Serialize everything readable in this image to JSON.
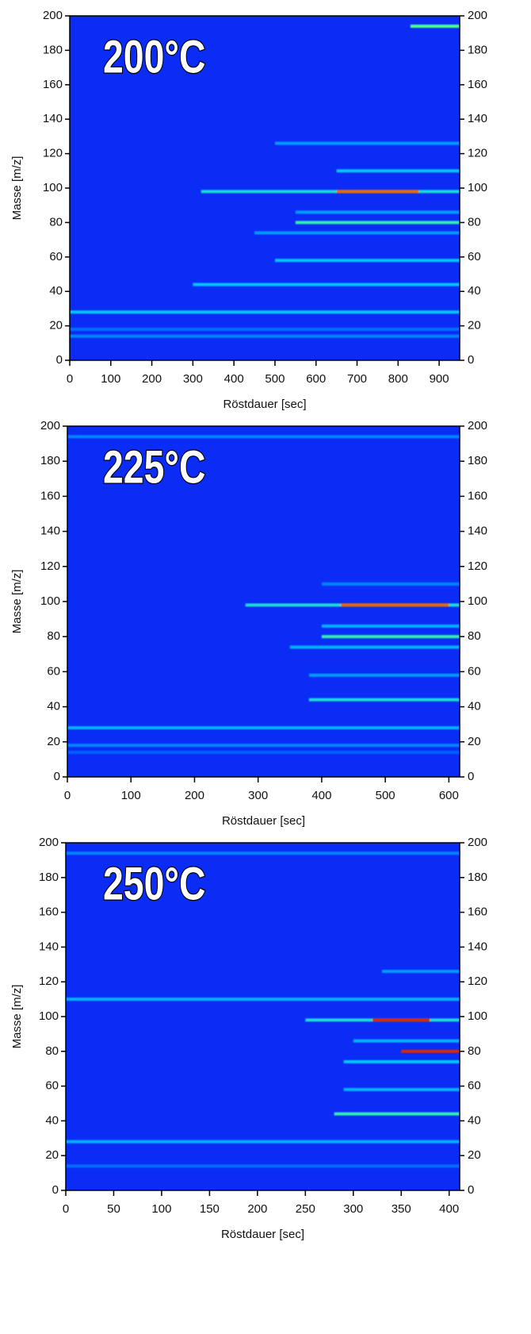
{
  "chart_data": [
    {
      "type": "heatmap",
      "title": "200°C",
      "xlabel": "Röstdauer [sec]",
      "ylabel": "Masse [m/z]",
      "xlim": [
        0,
        950
      ],
      "xticks": [
        0,
        100,
        200,
        300,
        400,
        500,
        600,
        700,
        800,
        900
      ],
      "ylim": [
        0,
        200
      ],
      "yticks": [
        0,
        20,
        40,
        60,
        80,
        100,
        120,
        140,
        160,
        180,
        200
      ],
      "bands": [
        {
          "mass": 14,
          "from": 0,
          "to": 950,
          "level": 0.3
        },
        {
          "mass": 18,
          "from": 0,
          "to": 950,
          "level": 0.25
        },
        {
          "mass": 28,
          "from": 0,
          "to": 950,
          "level": 0.45
        },
        {
          "mass": 44,
          "from": 300,
          "to": 950,
          "level": 0.45
        },
        {
          "mass": 58,
          "from": 500,
          "to": 950,
          "level": 0.45
        },
        {
          "mass": 74,
          "from": 450,
          "to": 950,
          "level": 0.35
        },
        {
          "mass": 80,
          "from": 550,
          "to": 950,
          "level": 0.55
        },
        {
          "mass": 86,
          "from": 550,
          "to": 950,
          "level": 0.35
        },
        {
          "mass": 98,
          "from": 320,
          "to": 950,
          "level": 0.5
        },
        {
          "mass": 98,
          "from": 650,
          "to": 850,
          "level": 0.85
        },
        {
          "mass": 110,
          "from": 650,
          "to": 950,
          "level": 0.45
        },
        {
          "mass": 126,
          "from": 500,
          "to": 950,
          "level": 0.35
        },
        {
          "mass": 194,
          "from": 830,
          "to": 950,
          "level": 0.6
        }
      ]
    },
    {
      "type": "heatmap",
      "title": "225°C",
      "xlabel": "Röstdauer [sec]",
      "ylabel": "Masse [m/z]",
      "xlim": [
        0,
        617
      ],
      "xticks": [
        0,
        100,
        200,
        300,
        400,
        500,
        600
      ],
      "ylim": [
        0,
        200
      ],
      "yticks": [
        0,
        20,
        40,
        60,
        80,
        100,
        120,
        140,
        160,
        180,
        200
      ],
      "bands": [
        {
          "mass": 14,
          "from": 0,
          "to": 617,
          "level": 0.2
        },
        {
          "mass": 18,
          "from": 0,
          "to": 617,
          "level": 0.3
        },
        {
          "mass": 28,
          "from": 0,
          "to": 617,
          "level": 0.4
        },
        {
          "mass": 44,
          "from": 380,
          "to": 617,
          "level": 0.5
        },
        {
          "mass": 58,
          "from": 380,
          "to": 617,
          "level": 0.35
        },
        {
          "mass": 74,
          "from": 350,
          "to": 617,
          "level": 0.4
        },
        {
          "mass": 80,
          "from": 400,
          "to": 617,
          "level": 0.55
        },
        {
          "mass": 86,
          "from": 400,
          "to": 617,
          "level": 0.4
        },
        {
          "mass": 98,
          "from": 280,
          "to": 617,
          "level": 0.5
        },
        {
          "mass": 98,
          "from": 430,
          "to": 600,
          "level": 0.85
        },
        {
          "mass": 110,
          "from": 400,
          "to": 617,
          "level": 0.3
        },
        {
          "mass": 194,
          "from": 0,
          "to": 617,
          "level": 0.3
        }
      ]
    },
    {
      "type": "heatmap",
      "title": "250°C",
      "xlabel": "Röstdauer [sec]",
      "ylabel": "Masse [m/z]",
      "xlim": [
        0,
        411
      ],
      "xticks": [
        0,
        50,
        100,
        150,
        200,
        250,
        300,
        350,
        400
      ],
      "ylim": [
        0,
        200
      ],
      "yticks": [
        0,
        20,
        40,
        60,
        80,
        100,
        120,
        140,
        160,
        180,
        200
      ],
      "bands": [
        {
          "mass": 14,
          "from": 0,
          "to": 411,
          "level": 0.25
        },
        {
          "mass": 28,
          "from": 0,
          "to": 411,
          "level": 0.4
        },
        {
          "mass": 44,
          "from": 280,
          "to": 411,
          "level": 0.55
        },
        {
          "mass": 58,
          "from": 290,
          "to": 411,
          "level": 0.4
        },
        {
          "mass": 74,
          "from": 290,
          "to": 411,
          "level": 0.45
        },
        {
          "mass": 80,
          "from": 350,
          "to": 411,
          "level": 0.9
        },
        {
          "mass": 86,
          "from": 300,
          "to": 411,
          "level": 0.4
        },
        {
          "mass": 98,
          "from": 250,
          "to": 411,
          "level": 0.5
        },
        {
          "mass": 98,
          "from": 320,
          "to": 380,
          "level": 0.9
        },
        {
          "mass": 110,
          "from": 0,
          "to": 411,
          "level": 0.4
        },
        {
          "mass": 126,
          "from": 330,
          "to": 411,
          "level": 0.35
        },
        {
          "mass": 194,
          "from": 0,
          "to": 411,
          "level": 0.3
        }
      ]
    }
  ]
}
